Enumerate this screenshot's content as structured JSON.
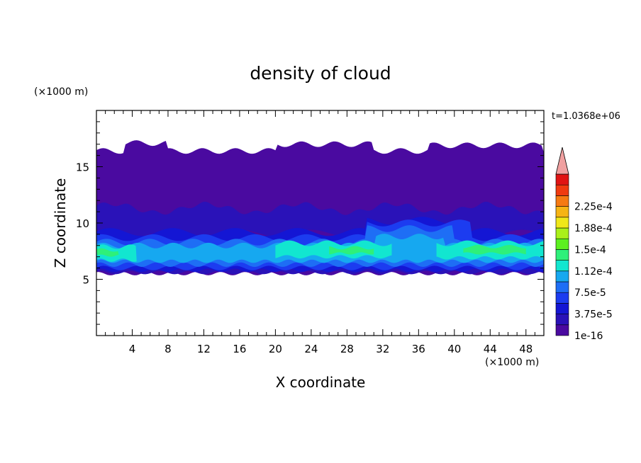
{
  "chart_data": {
    "type": "heatmap",
    "title": "density of cloud",
    "xlabel": "X coordinate",
    "ylabel": "Z coordinate",
    "x_unit": "(×1000 m)",
    "y_unit": "(×1000 m)",
    "time_label": "t=1.0368e+06",
    "xlim": [
      0,
      50
    ],
    "ylim": [
      0,
      20
    ],
    "x_ticks": [
      4,
      8,
      12,
      16,
      20,
      24,
      28,
      32,
      36,
      40,
      44,
      48
    ],
    "y_ticks": [
      5,
      10,
      15
    ],
    "colorbar": {
      "levels": [
        {
          "value": "1e-16",
          "color": "#4a0aa0"
        },
        {
          "value": "",
          "color": "#2a12b8"
        },
        {
          "value": "3.75e-5",
          "color": "#1416d4"
        },
        {
          "value": "",
          "color": "#1c3cf0"
        },
        {
          "value": "7.5e-5",
          "color": "#1e6ef5"
        },
        {
          "value": "",
          "color": "#16a8f0"
        },
        {
          "value": "1.12e-4",
          "color": "#12e6d0"
        },
        {
          "value": "",
          "color": "#2ef07a"
        },
        {
          "value": "1.5e-4",
          "color": "#5cf020"
        },
        {
          "value": "",
          "color": "#aaf01a"
        },
        {
          "value": "1.88e-4",
          "color": "#f0e81a"
        },
        {
          "value": "",
          "color": "#f6b414"
        },
        {
          "value": "2.25e-4",
          "color": "#f67a12"
        },
        {
          "value": "",
          "color": "#f03a10"
        },
        {
          "value": "",
          "color": "#e01414"
        }
      ],
      "overflow_color": "#f0a0a0"
    },
    "field_layers": [
      {
        "level": 1,
        "z_bottom": 5.5,
        "z_top": 16.5,
        "note_x": [
          0,
          50
        ]
      },
      {
        "level": 2,
        "z_bottom": 5.6,
        "z_top": 11.5,
        "note_x": [
          0,
          50
        ]
      },
      {
        "level": 3,
        "z_bottom": 5.8,
        "z_top": 9.6,
        "note_x": [
          0,
          50
        ]
      },
      {
        "level": 5,
        "z_bottom": 6.3,
        "z_top": 8.4,
        "note_x": [
          0,
          50
        ]
      },
      {
        "level": 7,
        "z_bottom": 6.8,
        "z_top": 7.9,
        "note_x": [
          0,
          50
        ]
      }
    ]
  }
}
